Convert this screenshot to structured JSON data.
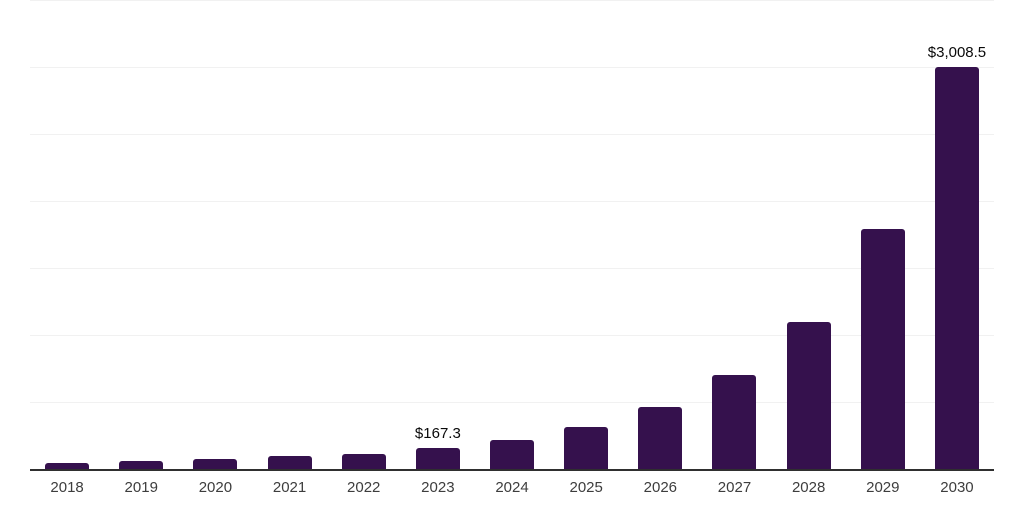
{
  "chart_data": {
    "type": "bar",
    "title": "",
    "xlabel": "",
    "ylabel": "",
    "categories": [
      "2018",
      "2019",
      "2020",
      "2021",
      "2022",
      "2023",
      "2024",
      "2025",
      "2026",
      "2027",
      "2028",
      "2029",
      "2030"
    ],
    "values": [
      55,
      67,
      85,
      103,
      118,
      167.3,
      225,
      320,
      470,
      712,
      1105,
      1800,
      3008.5
    ],
    "data_labels": [
      "",
      "",
      "",
      "",
      "",
      "$167.3",
      "",
      "",
      "",
      "",
      "",
      "",
      "$3,008.5"
    ],
    "ylim": [
      0,
      3500
    ],
    "gridline_values": [
      500,
      1000,
      1500,
      2000,
      2500,
      3000,
      3500
    ],
    "grid": true,
    "legend_position": "none",
    "colors": {
      "bar": "#35114d",
      "axis_line": "#2f2f2f",
      "gridline": "#f1f1f1",
      "tick_label": "#3d3d3d",
      "data_label": "#0a0a0a",
      "background": "#ffffff"
    }
  }
}
